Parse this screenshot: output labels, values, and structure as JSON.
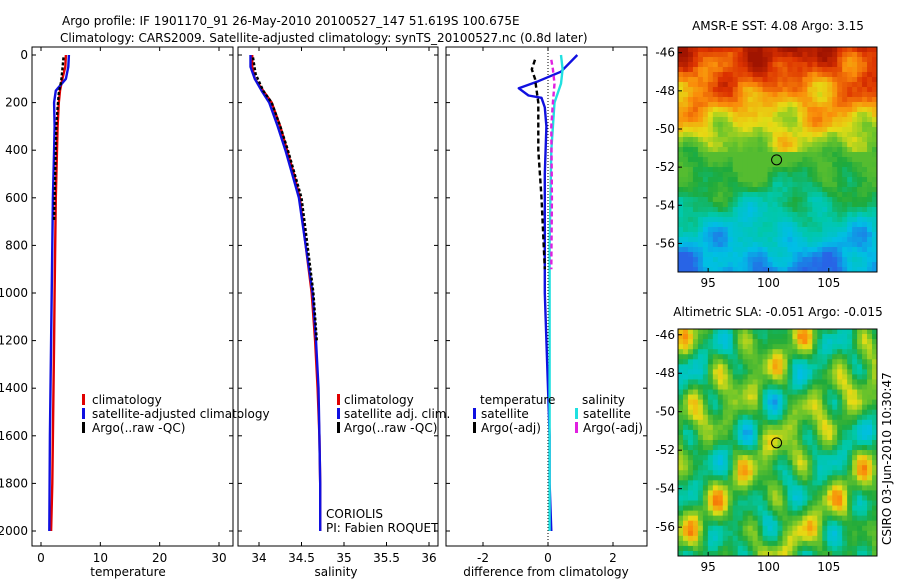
{
  "header": {
    "line1": "Argo profile: IF 1901170_91 26-May-2010 20100527_147 51.619S 100.675E",
    "line2": "Climatology: CARS2009. Satellite-adjusted climatology: synTS_20100527.nc (0.8d later)"
  },
  "side_label": "CSIRO 03-Jun-2010 10:30:47",
  "colors": {
    "climatology": "#e00000",
    "satellite": "#1010e0",
    "argo": "#000000",
    "sat_salinity": "#20e0e0",
    "argo_salinity": "#e020e0"
  },
  "chart_data": [
    {
      "type": "line",
      "title": "",
      "xlabel": "temperature",
      "ylabel": "",
      "xlim": [
        -2,
        31
      ],
      "ylim": [
        2050,
        0
      ],
      "xticks": [
        "0",
        "10",
        "20",
        "30"
      ],
      "yticks": [
        "0",
        "200",
        "400",
        "600",
        "800",
        "1000",
        "1200",
        "1400",
        "1600",
        "1800",
        "2000"
      ],
      "legend": [
        "climatology",
        "satellite-adjusted climatology",
        "Argo(..raw -QC)"
      ],
      "series": [
        {
          "name": "climatology",
          "x": [
            4.2,
            4.1,
            3.6,
            3.2,
            3.0,
            2.8,
            2.7,
            2.6,
            2.5,
            2.4,
            2.3,
            2.2,
            2.1,
            2.0,
            1.9,
            1.8,
            1.7
          ],
          "y": [
            0,
            50,
            100,
            150,
            200,
            300,
            400,
            500,
            600,
            800,
            1000,
            1200,
            1400,
            1600,
            1800,
            1900,
            2000
          ]
        },
        {
          "name": "satellite-adjusted climatology",
          "x": [
            4.7,
            4.6,
            4.2,
            2.5,
            2.2,
            2.3,
            2.2,
            2.1,
            2.0,
            1.9,
            1.8,
            1.7,
            1.6,
            1.5,
            1.4
          ],
          "y": [
            0,
            50,
            100,
            150,
            200,
            300,
            400,
            500,
            600,
            800,
            1000,
            1200,
            1400,
            1600,
            2000
          ]
        },
        {
          "name": "Argo(..raw -QC)",
          "x": [
            3.8,
            3.6,
            3.4,
            3.0,
            2.8,
            2.6,
            2.5,
            2.4,
            2.3,
            2.2
          ],
          "y": [
            10,
            60,
            110,
            160,
            220,
            300,
            400,
            500,
            600,
            700
          ]
        }
      ]
    },
    {
      "type": "line",
      "title": "",
      "xlabel": "salinity",
      "ylabel": "",
      "xlim": [
        33.8,
        36.1
      ],
      "ylim": [
        2050,
        0
      ],
      "xticks": [
        "34",
        "34.5",
        "35",
        "35.5",
        "36"
      ],
      "legend": [
        "climatology",
        "satellite adj. clim.",
        "Argo(..raw -QC)"
      ],
      "annotation": [
        "CORIOLIS",
        "PI: Fabien ROQUET"
      ],
      "series": [
        {
          "name": "climatology",
          "x": [
            33.92,
            33.92,
            33.95,
            34.05,
            34.15,
            34.25,
            34.33,
            34.41,
            34.48,
            34.55,
            34.62,
            34.66,
            34.69,
            34.71,
            34.72,
            34.72
          ],
          "y": [
            0,
            50,
            100,
            150,
            200,
            300,
            400,
            500,
            600,
            800,
            1000,
            1200,
            1400,
            1600,
            1800,
            2000
          ]
        },
        {
          "name": "satellite adj. clim.",
          "x": [
            33.9,
            33.9,
            33.95,
            34.03,
            34.12,
            34.22,
            34.31,
            34.39,
            34.47,
            34.55,
            34.63,
            34.67,
            34.7,
            34.71,
            34.72,
            34.72
          ],
          "y": [
            0,
            50,
            100,
            150,
            200,
            300,
            400,
            500,
            600,
            800,
            1000,
            1200,
            1400,
            1600,
            1800,
            2000
          ]
        },
        {
          "name": "Argo(..raw -QC)",
          "x": [
            33.93,
            33.96,
            34.05,
            34.15,
            34.25,
            34.34,
            34.42,
            34.5,
            34.57,
            34.64,
            34.68
          ],
          "y": [
            10,
            80,
            150,
            200,
            300,
            400,
            500,
            600,
            800,
            1000,
            1200
          ]
        }
      ]
    },
    {
      "type": "line",
      "title": "",
      "xlabel": "difference from climatology",
      "ylabel": "",
      "xlim": [
        -3,
        3
      ],
      "ylim": [
        2050,
        0
      ],
      "xticks": [
        "-2",
        "0",
        "2"
      ],
      "legend_groups": [
        {
          "title": "temperature",
          "entries": [
            "satellite",
            "Argo(-adj)"
          ]
        },
        {
          "title": "salinity",
          "entries": [
            "satellite",
            "Argo(-adj)"
          ]
        }
      ],
      "series": [
        {
          "name": "temperature satellite",
          "x": [
            0.9,
            0.4,
            -0.3,
            -0.9,
            -0.6,
            -0.2,
            -0.1,
            -0.05,
            -0.1,
            -0.1,
            -0.1,
            0.0,
            0.05,
            0.05,
            0.1
          ],
          "y": [
            0,
            70,
            110,
            140,
            170,
            180,
            220,
            300,
            500,
            800,
            1000,
            1400,
            1600,
            1800,
            2000
          ]
        },
        {
          "name": "temperature Argo(-adj)",
          "x": [
            -0.4,
            -0.5,
            -0.4,
            -0.3,
            -0.3,
            -0.2,
            -0.1
          ],
          "y": [
            20,
            60,
            100,
            200,
            400,
            600,
            900
          ]
        },
        {
          "name": "salinity satellite",
          "x": [
            0.4,
            0.45,
            0.4,
            0.2,
            0.1,
            0.05,
            0.05,
            0.05
          ],
          "y": [
            0,
            60,
            120,
            200,
            400,
            800,
            1500,
            2000
          ]
        },
        {
          "name": "salinity Argo(-adj)",
          "x": [
            0.1,
            0.15,
            0.2,
            0.15,
            0.1,
            0.12,
            0.1
          ],
          "y": [
            20,
            60,
            120,
            200,
            300,
            600,
            900
          ]
        }
      ]
    },
    {
      "type": "heatmap",
      "title": "AMSR-E SST: 4.08 Argo: 3.15",
      "xlim": [
        92.5,
        109
      ],
      "ylim": [
        -57.5,
        -45.7
      ],
      "xticks": [
        "95",
        "100",
        "105"
      ],
      "yticks": [
        "-46",
        "-48",
        "-50",
        "-52",
        "-54",
        "-56"
      ],
      "marker": {
        "lon": 100.675,
        "lat": -51.619
      }
    },
    {
      "type": "heatmap",
      "title": "Altimetric SLA: -0.051 Argo: -0.015",
      "xlim": [
        92.5,
        109
      ],
      "ylim": [
        -57.5,
        -45.7
      ],
      "xticks": [
        "95",
        "100",
        "105"
      ],
      "yticks": [
        "-46",
        "-48",
        "-50",
        "-52",
        "-54",
        "-56"
      ],
      "marker": {
        "lon": 100.675,
        "lat": -51.619
      }
    }
  ]
}
